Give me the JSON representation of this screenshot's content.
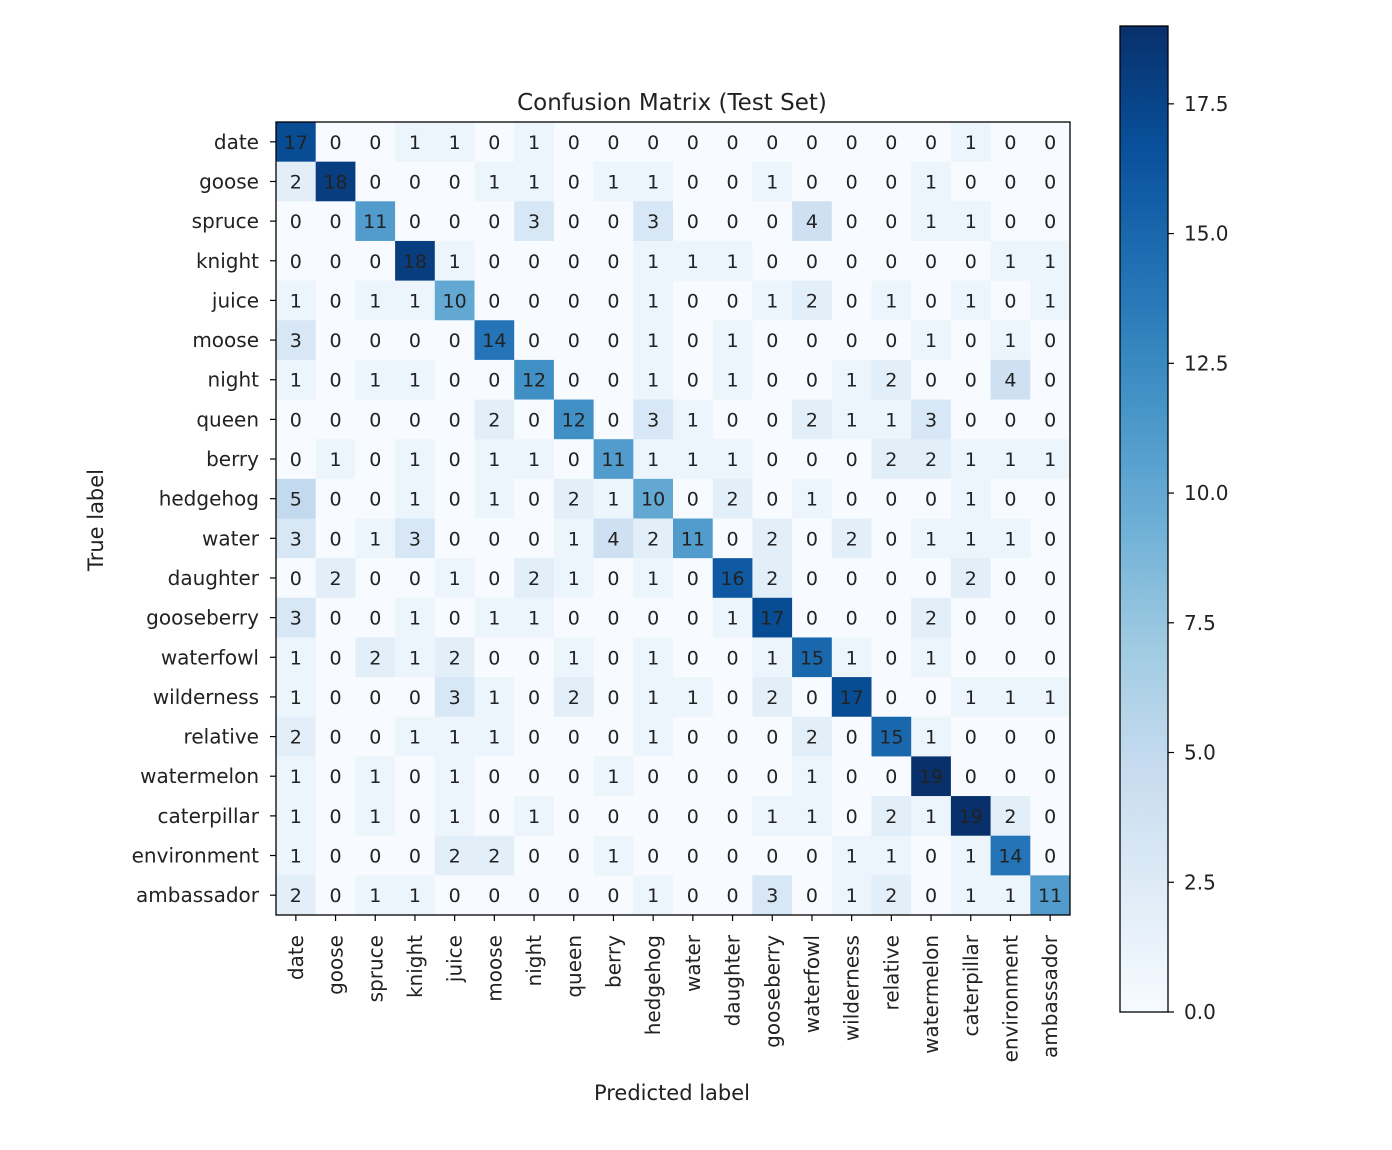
{
  "chart_data": {
    "type": "heatmap",
    "title": "Confusion Matrix (Test Set)",
    "xlabel": "Predicted label",
    "ylabel": "True label",
    "labels": [
      "date",
      "goose",
      "spruce",
      "knight",
      "juice",
      "moose",
      "night",
      "queen",
      "berry",
      "hedgehog",
      "water",
      "daughter",
      "gooseberry",
      "waterfowl",
      "wilderness",
      "relative",
      "watermelon",
      "caterpillar",
      "environment",
      "ambassador"
    ],
    "matrix": [
      [
        17,
        0,
        0,
        1,
        1,
        0,
        1,
        0,
        0,
        0,
        0,
        0,
        0,
        0,
        0,
        0,
        0,
        1,
        0,
        0
      ],
      [
        2,
        18,
        0,
        0,
        0,
        1,
        1,
        0,
        1,
        1,
        0,
        0,
        1,
        0,
        0,
        0,
        1,
        0,
        0,
        0
      ],
      [
        0,
        0,
        11,
        0,
        0,
        0,
        3,
        0,
        0,
        3,
        0,
        0,
        0,
        4,
        0,
        0,
        1,
        1,
        0,
        0
      ],
      [
        0,
        0,
        0,
        18,
        1,
        0,
        0,
        0,
        0,
        1,
        1,
        1,
        0,
        0,
        0,
        0,
        0,
        0,
        1,
        1
      ],
      [
        1,
        0,
        1,
        1,
        10,
        0,
        0,
        0,
        0,
        1,
        0,
        0,
        1,
        2,
        0,
        1,
        0,
        1,
        0,
        1
      ],
      [
        3,
        0,
        0,
        0,
        0,
        14,
        0,
        0,
        0,
        1,
        0,
        1,
        0,
        0,
        0,
        0,
        1,
        0,
        1,
        0
      ],
      [
        1,
        0,
        1,
        1,
        0,
        0,
        12,
        0,
        0,
        1,
        0,
        1,
        0,
        0,
        1,
        2,
        0,
        0,
        4,
        0
      ],
      [
        0,
        0,
        0,
        0,
        0,
        2,
        0,
        12,
        0,
        3,
        1,
        0,
        0,
        2,
        1,
        1,
        3,
        0,
        0,
        0
      ],
      [
        0,
        1,
        0,
        1,
        0,
        1,
        1,
        0,
        11,
        1,
        1,
        1,
        0,
        0,
        0,
        2,
        2,
        1,
        1,
        1
      ],
      [
        5,
        0,
        0,
        1,
        0,
        1,
        0,
        2,
        1,
        10,
        0,
        2,
        0,
        1,
        0,
        0,
        0,
        1,
        0,
        0
      ],
      [
        3,
        0,
        1,
        3,
        0,
        0,
        0,
        1,
        4,
        2,
        11,
        0,
        2,
        0,
        2,
        0,
        1,
        1,
        1,
        0
      ],
      [
        0,
        2,
        0,
        0,
        1,
        0,
        2,
        1,
        0,
        1,
        0,
        16,
        2,
        0,
        0,
        0,
        0,
        2,
        0,
        0
      ],
      [
        3,
        0,
        0,
        1,
        0,
        1,
        1,
        0,
        0,
        0,
        0,
        1,
        17,
        0,
        0,
        0,
        2,
        0,
        0,
        0
      ],
      [
        1,
        0,
        2,
        1,
        2,
        0,
        0,
        1,
        0,
        1,
        0,
        0,
        1,
        15,
        1,
        0,
        1,
        0,
        0,
        0
      ],
      [
        1,
        0,
        0,
        0,
        3,
        1,
        0,
        2,
        0,
        1,
        1,
        0,
        2,
        0,
        17,
        0,
        0,
        1,
        1,
        1
      ],
      [
        2,
        0,
        0,
        1,
        1,
        1,
        0,
        0,
        0,
        1,
        0,
        0,
        0,
        2,
        0,
        15,
        1,
        0,
        0,
        0
      ],
      [
        1,
        0,
        1,
        0,
        1,
        0,
        0,
        0,
        1,
        0,
        0,
        0,
        0,
        1,
        0,
        0,
        19,
        0,
        0,
        0
      ],
      [
        1,
        0,
        1,
        0,
        1,
        0,
        1,
        0,
        0,
        0,
        0,
        0,
        1,
        1,
        0,
        2,
        1,
        19,
        2,
        0
      ],
      [
        1,
        0,
        0,
        0,
        2,
        2,
        0,
        0,
        1,
        0,
        0,
        0,
        0,
        0,
        1,
        1,
        0,
        1,
        14,
        0
      ],
      [
        2,
        0,
        1,
        1,
        0,
        0,
        0,
        0,
        0,
        1,
        0,
        0,
        3,
        0,
        1,
        2,
        0,
        1,
        1,
        11
      ]
    ],
    "vmin": 0,
    "vmax": 19,
    "colormap": "Blues",
    "colorbar_ticks": [
      "0.0",
      "2.5",
      "5.0",
      "7.5",
      "10.0",
      "12.5",
      "15.0",
      "17.5"
    ],
    "colorbar_tick_values": [
      0,
      2.5,
      5,
      7.5,
      10,
      12.5,
      15,
      17.5
    ],
    "colors": {
      "min": "#f7fbff",
      "max": "#08306b",
      "text_dark": "#1f3b6f",
      "text_light": "#ffffff"
    }
  }
}
